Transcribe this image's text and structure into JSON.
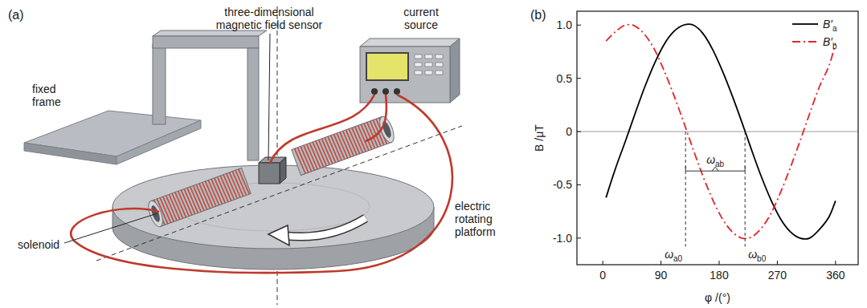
{
  "diagram": {
    "panel_label": "(a)",
    "labels": {
      "sensor": [
        "three-dimensional",
        "magnetic field sensor"
      ],
      "current_source": [
        "current",
        "source"
      ],
      "fixed_frame": [
        "fixed",
        "frame"
      ],
      "platform": [
        "electric",
        "rotating",
        "platform"
      ],
      "solenoid": [
        "solenoid"
      ]
    }
  },
  "chart_data": {
    "type": "line",
    "panel_label": "(b)",
    "x_label": "φ /(°)",
    "y_label": "B /μT",
    "x": [
      5,
      20,
      35,
      50,
      65,
      80,
      95,
      110,
      125,
      140,
      155,
      170,
      185,
      200,
      215,
      230,
      245,
      260,
      275,
      290,
      305,
      320,
      335,
      350,
      360
    ],
    "series": [
      {
        "name": "B′a",
        "color": "#000000",
        "line_style": "solid",
        "values": [
          -0.62,
          -0.34,
          -0.09,
          0.17,
          0.42,
          0.64,
          0.82,
          0.94,
          1.0,
          1.0,
          0.92,
          0.77,
          0.57,
          0.34,
          0.09,
          -0.17,
          -0.42,
          -0.64,
          -0.82,
          -0.94,
          -1.0,
          -1.0,
          -0.92,
          -0.8,
          -0.65
        ]
      },
      {
        "name": "B′b",
        "color": "#e3262b",
        "line_style": "dashdot",
        "values": [
          0.85,
          0.94,
          1.0,
          0.99,
          0.91,
          0.77,
          0.57,
          0.34,
          0.09,
          -0.17,
          -0.42,
          -0.64,
          -0.82,
          -0.94,
          -1.0,
          -0.99,
          -0.91,
          -0.77,
          -0.57,
          -0.34,
          -0.09,
          0.17,
          0.42,
          0.62,
          0.83
        ]
      }
    ],
    "xlim": [
      -40,
      395
    ],
    "ylim": [
      -1.25,
      1.13
    ],
    "xticks": [
      0,
      90,
      180,
      270,
      360
    ],
    "yticks": [
      {
        "value": -1,
        "label": "-1.0"
      },
      -0.5,
      0,
      0.5,
      {
        "value": 1,
        "label": "1.0"
      }
    ],
    "grid": false,
    "legend": "upper right",
    "annotations": {
      "hline": 0,
      "vlines": [
        {
          "x": 128,
          "y_from": 0,
          "y_to": -1.08,
          "label": "ωa0"
        },
        {
          "x": 220,
          "y_from": 0,
          "y_to": -1.08,
          "label": "ωb0"
        }
      ],
      "bracket": {
        "from": 128,
        "to": 220,
        "y": -0.37,
        "label": "ωab"
      }
    }
  }
}
